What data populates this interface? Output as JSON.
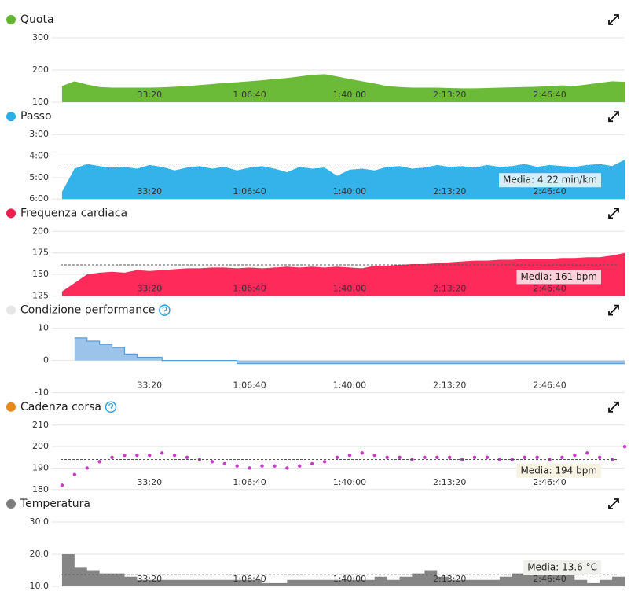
{
  "chart_data": [
    {
      "type": "area",
      "title": "Quota",
      "legend_color": "#64b82f",
      "color": "#6cbb38",
      "x": [
        250,
        500,
        750,
        1000,
        1250,
        1500,
        1750,
        2000,
        2250,
        2500,
        2750,
        3000,
        3250,
        3500,
        3750,
        4000,
        4250,
        4500,
        4750,
        5000,
        5250,
        5500,
        5750,
        6000,
        6250,
        6500,
        6750,
        7000,
        7250,
        7500,
        7750,
        8000,
        8250,
        8500,
        8750,
        9000,
        9250,
        9500,
        9750,
        10000,
        10250,
        10500,
        10750,
        11000,
        11250,
        11500
      ],
      "values": [
        150,
        165,
        155,
        147,
        145,
        145,
        145,
        145,
        146,
        148,
        150,
        153,
        156,
        160,
        162,
        165,
        168,
        172,
        175,
        180,
        185,
        187,
        180,
        172,
        165,
        158,
        150,
        147,
        145,
        145,
        145,
        144,
        143,
        143,
        144,
        145,
        146,
        147,
        148,
        150,
        152,
        150,
        155,
        160,
        165,
        163
      ],
      "xlim": [
        0,
        11500
      ],
      "ylim": [
        100,
        300
      ],
      "yticks": [
        100,
        200,
        300
      ],
      "xticks": [
        {
          "value": 2000,
          "label": "33:20"
        },
        {
          "value": 4000,
          "label": "1:06:40"
        },
        {
          "value": 6000,
          "label": "1:40:00"
        },
        {
          "value": 8000,
          "label": "2:13:20"
        },
        {
          "value": 10000,
          "label": "2:46:40"
        }
      ]
    },
    {
      "type": "area",
      "title": "Passo",
      "legend_color": "#2aaee6",
      "color": "#34b2ea",
      "x": [
        250,
        500,
        750,
        1000,
        1250,
        1500,
        1750,
        2000,
        2250,
        2500,
        2750,
        3000,
        3250,
        3500,
        3750,
        4000,
        4250,
        4500,
        4750,
        5000,
        5250,
        5500,
        5750,
        6000,
        6250,
        6500,
        6750,
        7000,
        7250,
        7500,
        7750,
        8000,
        8250,
        8500,
        8750,
        9000,
        9250,
        9500,
        9750,
        10000,
        10250,
        10500,
        10750,
        11000,
        11250,
        11500
      ],
      "values": [
        340,
        275,
        262,
        268,
        272,
        270,
        275,
        265,
        270,
        280,
        272,
        268,
        275,
        270,
        280,
        272,
        268,
        275,
        285,
        270,
        275,
        272,
        295,
        278,
        275,
        280,
        270,
        268,
        275,
        272,
        265,
        270,
        268,
        272,
        265,
        270,
        268,
        262,
        270,
        265,
        268,
        270,
        265,
        262,
        268,
        250
      ],
      "xlim": [
        0,
        11500
      ],
      "ylim": [
        360,
        180
      ],
      "yticks": [
        {
          "value": 180,
          "label": "3:00"
        },
        {
          "value": 240,
          "label": "4:00"
        },
        {
          "value": 300,
          "label": "5:00"
        },
        {
          "value": 360,
          "label": "6:00"
        }
      ],
      "xticks": [
        {
          "value": 2000,
          "label": "33:20"
        },
        {
          "value": 4000,
          "label": "1:06:40"
        },
        {
          "value": 6000,
          "label": "1:40:00"
        },
        {
          "value": 8000,
          "label": "2:13:20"
        },
        {
          "value": 10000,
          "label": "2:46:40"
        }
      ],
      "mean": 262,
      "annotation": "Media: 4:22 min/km",
      "annotation_color": "#d4eff9"
    },
    {
      "type": "area",
      "title": "Frequenza cardiaca",
      "legend_color": "#ef1f4f",
      "color": "#fd2a5a",
      "x": [
        250,
        500,
        750,
        1000,
        1250,
        1500,
        1750,
        2000,
        2250,
        2500,
        2750,
        3000,
        3250,
        3500,
        3750,
        4000,
        4250,
        4500,
        4750,
        5000,
        5250,
        5500,
        5750,
        6000,
        6250,
        6500,
        6750,
        7000,
        7250,
        7500,
        7750,
        8000,
        8250,
        8500,
        8750,
        9000,
        9250,
        9500,
        9750,
        10000,
        10250,
        10500,
        10750,
        11000,
        11250,
        11500
      ],
      "values": [
        130,
        140,
        150,
        152,
        153,
        152,
        155,
        154,
        155,
        156,
        157,
        157,
        158,
        158,
        157,
        158,
        157,
        158,
        159,
        158,
        159,
        158,
        159,
        158,
        157,
        160,
        160,
        161,
        162,
        162,
        163,
        164,
        165,
        166,
        166,
        167,
        167,
        168,
        168,
        168,
        169,
        169,
        170,
        170,
        172,
        175
      ],
      "xlim": [
        0,
        11500
      ],
      "ylim": [
        125,
        200
      ],
      "yticks": [
        125,
        150,
        175,
        200
      ],
      "xticks": [
        {
          "value": 2000,
          "label": "33:20"
        },
        {
          "value": 4000,
          "label": "1:06:40"
        },
        {
          "value": 6000,
          "label": "1:40:00"
        },
        {
          "value": 8000,
          "label": "2:13:20"
        },
        {
          "value": 10000,
          "label": "2:46:40"
        }
      ],
      "mean": 161,
      "annotation": "Media: 161 bpm",
      "annotation_color": "#fbd0da"
    },
    {
      "type": "area",
      "step": true,
      "help_icon": true,
      "title": "Condizione performance",
      "legend_color": "#e6e6e6",
      "color": "#9cc3ea",
      "line_color": "#5b9bd5",
      "x": [
        250,
        500,
        750,
        1000,
        1250,
        1500,
        1750,
        2000,
        2250,
        2500,
        2750,
        3000,
        3250,
        3500,
        3750,
        4000,
        4250,
        4500,
        4750,
        5000,
        5250,
        5500,
        5750,
        6000,
        6250,
        6500,
        6750,
        7000,
        7250,
        7500,
        7750,
        8000,
        8250,
        8500,
        8750,
        9000,
        9250,
        9500,
        9750,
        10000,
        10250,
        10500,
        10750,
        11000,
        11250,
        11500
      ],
      "values": [
        null,
        7,
        6,
        5,
        4,
        2,
        1,
        1,
        0,
        0,
        0,
        0,
        0,
        0,
        -1,
        -1,
        -1,
        -1,
        -1,
        -1,
        -1,
        -1,
        -1,
        -1,
        -1,
        -1,
        -1,
        -1,
        -1,
        -1,
        -1,
        -1,
        -1,
        -1,
        -1,
        -1,
        -1,
        -1,
        -1,
        -1,
        -1,
        -1,
        -1,
        -1,
        -1,
        -1
      ],
      "xlim": [
        0,
        11500
      ],
      "ylim": [
        -10,
        10
      ],
      "yticks": [
        -10,
        0,
        10
      ],
      "xticks": [
        {
          "value": 2000,
          "label": "33:20"
        },
        {
          "value": 4000,
          "label": "1:06:40"
        },
        {
          "value": 6000,
          "label": "1:40:00"
        },
        {
          "value": 8000,
          "label": "2:13:20"
        },
        {
          "value": 10000,
          "label": "2:46:40"
        }
      ]
    },
    {
      "type": "scatter",
      "help_icon": true,
      "title": "Cadenza corsa",
      "legend_color": "#e8891d",
      "color": "#c83ac8",
      "x": [
        250,
        500,
        750,
        1000,
        1250,
        1500,
        1750,
        2000,
        2250,
        2500,
        2750,
        3000,
        3250,
        3500,
        3750,
        4000,
        4250,
        4500,
        4750,
        5000,
        5250,
        5500,
        5750,
        6000,
        6250,
        6500,
        6750,
        7000,
        7250,
        7500,
        7750,
        8000,
        8250,
        8500,
        8750,
        9000,
        9250,
        9500,
        9750,
        10000,
        10250,
        10500,
        10750,
        11000,
        11250,
        11500
      ],
      "values": [
        182,
        187,
        190,
        193,
        195,
        196,
        196,
        196,
        197,
        196,
        195,
        194,
        193,
        192,
        191,
        190,
        191,
        191,
        190,
        191,
        192,
        193,
        195,
        196,
        197,
        196,
        195,
        195,
        194,
        195,
        195,
        195,
        194,
        195,
        195,
        194,
        194,
        195,
        195,
        194,
        195,
        196,
        197,
        195,
        194,
        200
      ],
      "xlim": [
        0,
        11500
      ],
      "ylim": [
        180,
        210
      ],
      "yticks": [
        180,
        190,
        200,
        210
      ],
      "xticks": [
        {
          "value": 2000,
          "label": "33:20"
        },
        {
          "value": 4000,
          "label": "1:06:40"
        },
        {
          "value": 6000,
          "label": "1:40:00"
        },
        {
          "value": 8000,
          "label": "2:13:20"
        },
        {
          "value": 10000,
          "label": "2:46:40"
        }
      ],
      "mean": 194,
      "annotation": "Media: 194 bpm",
      "annotation_color": "#f7f3e2"
    },
    {
      "type": "area",
      "step": true,
      "title": "Temperatura",
      "legend_color": "#7d7d7d",
      "color": "#858585",
      "x": [
        250,
        500,
        750,
        1000,
        1250,
        1500,
        1750,
        2000,
        2250,
        2500,
        2750,
        3000,
        3250,
        3500,
        3750,
        4000,
        4250,
        4500,
        4750,
        5000,
        5250,
        5500,
        5750,
        6000,
        6250,
        6500,
        6750,
        7000,
        7250,
        7500,
        7750,
        8000,
        8250,
        8500,
        8750,
        9000,
        9250,
        9500,
        9750,
        10000,
        10250,
        10500,
        10750,
        11000,
        11250,
        11500
      ],
      "values": [
        20,
        16,
        15,
        14,
        14,
        13,
        12,
        12,
        12,
        12,
        12,
        12,
        12,
        12,
        12,
        12,
        11,
        11,
        12,
        12,
        12,
        12,
        12,
        12,
        12,
        13,
        12,
        13,
        14,
        15,
        13,
        12,
        12,
        12,
        12,
        13,
        14,
        16,
        17,
        18,
        14,
        12,
        11,
        12,
        13,
        12
      ],
      "xlim": [
        0,
        11500
      ],
      "ylim": [
        10,
        30
      ],
      "yticks": [
        {
          "value": 10,
          "label": "10.0"
        },
        {
          "value": 20,
          "label": "20.0"
        },
        {
          "value": 30,
          "label": "30.0"
        }
      ],
      "xticks": [
        {
          "value": 2000,
          "label": "33:20"
        },
        {
          "value": 4000,
          "label": "1:06:40"
        },
        {
          "value": 6000,
          "label": "1:40:00"
        },
        {
          "value": 8000,
          "label": "2:13:20"
        },
        {
          "value": 10000,
          "label": "2:46:40"
        }
      ],
      "mean": 13.6,
      "annotation": "Media: 13.6 °C",
      "annotation_color": "#efefeb"
    }
  ]
}
